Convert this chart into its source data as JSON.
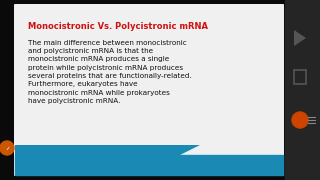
{
  "title": "Monocistronic Vs. Polycistronic mRNA",
  "title_color": "#cc1111",
  "title_fontsize": 6.0,
  "body_text": "The main difference between monocistronic\nand polycistronic mRNA is that the\nmonocistronic mRNA produces a single\nprotein while polycistronic mRNA produces\nseveral proteins that are functionally-related.\nFurthermore, eukaryotes have\nmonocistronic mRNA while prokaryotes\nhave polycistronic mRNA.",
  "body_fontsize": 5.2,
  "body_color": "#111111",
  "bg_outer": "#0a0a0a",
  "bg_card": "#f0f0f0",
  "accent_color": "#1a8ab5",
  "right_panel_color": "#252525",
  "left_strip_color": "#0a0a0a",
  "icon1_color": "#555555",
  "icon2_color": "#555555",
  "icon3_color": "#cc4400",
  "orange_circle_color": "#cc5500"
}
